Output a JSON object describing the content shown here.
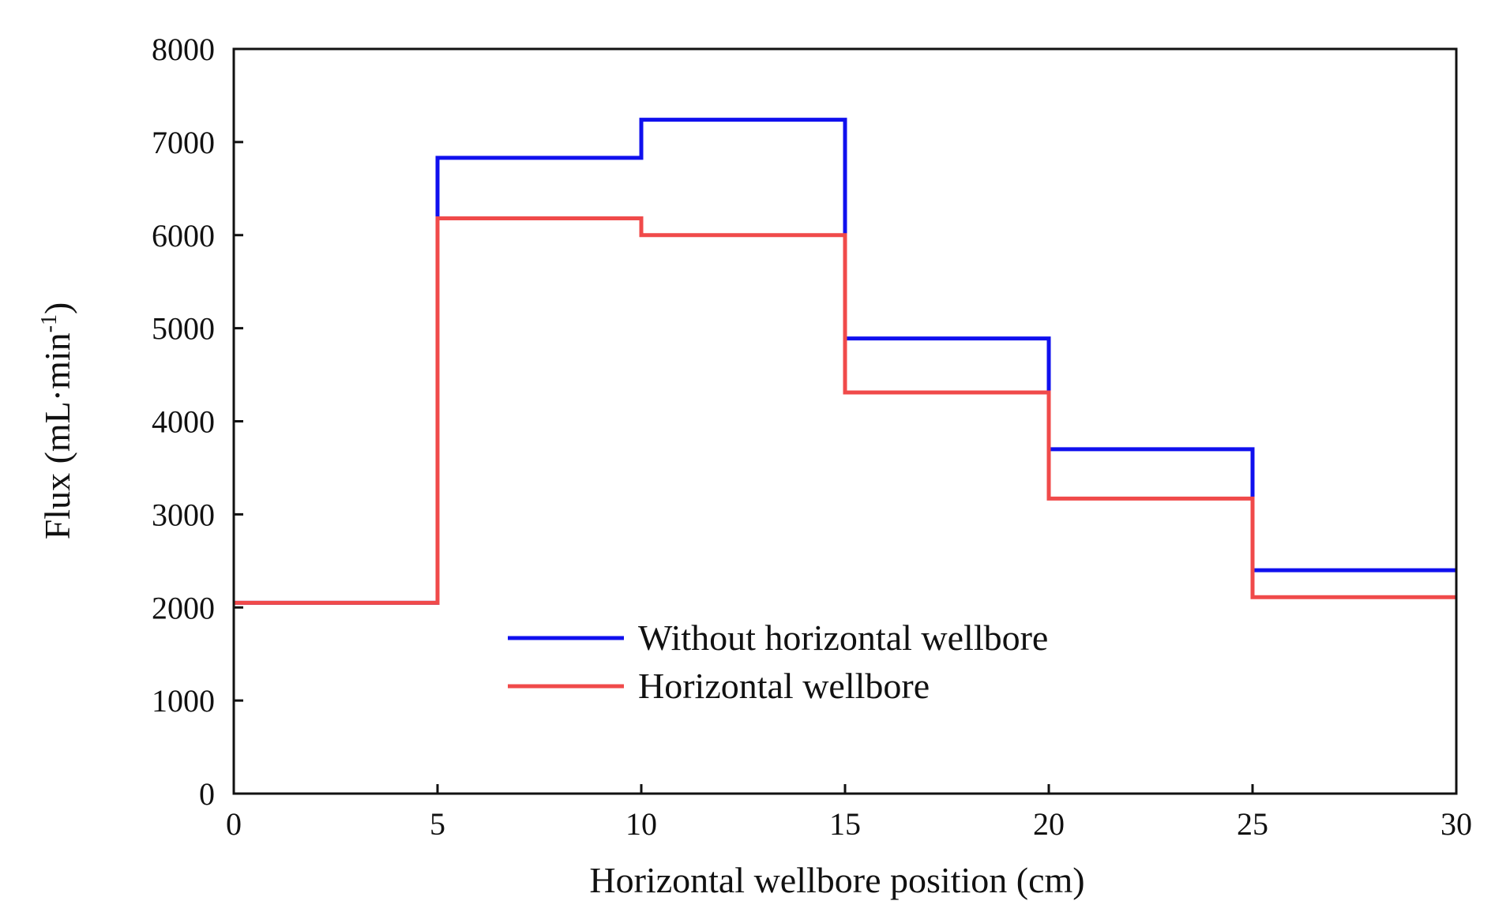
{
  "chart_data": {
    "type": "line",
    "style": "step",
    "title": "",
    "xlabel": "Horizontal wellbore position (cm)",
    "ylabel": {
      "main": "Flux (mL·min",
      "superscript": "-1",
      "close": ")"
    },
    "xlim": [
      0,
      30
    ],
    "ylim": [
      0,
      8000
    ],
    "xticks": [
      "0",
      "5",
      "10",
      "15",
      "20",
      "25",
      "30"
    ],
    "yticks": [
      "0",
      "1000",
      "2000",
      "3000",
      "4000",
      "5000",
      "6000",
      "7000",
      "8000"
    ],
    "grid": false,
    "legend_position": "lower-center",
    "bins": [
      [
        0,
        5
      ],
      [
        5,
        10
      ],
      [
        10,
        15
      ],
      [
        15,
        20
      ],
      [
        20,
        25
      ],
      [
        25,
        30
      ]
    ],
    "series": [
      {
        "name": "Without horizontal wellbore",
        "color": "#1010ee",
        "values": [
          2050,
          6830,
          7240,
          4890,
          3700,
          2400
        ]
      },
      {
        "name": "Horizontal wellbore",
        "color": "#f04a4a",
        "values": [
          2050,
          6180,
          6000,
          4310,
          3170,
          2110
        ]
      }
    ]
  }
}
